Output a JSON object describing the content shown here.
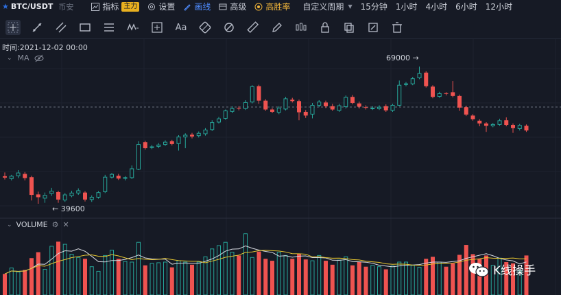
{
  "header": {
    "pair": "BTC/USDT",
    "exchange": "币安",
    "indicators_label": "指标",
    "indicators_badge": "主力",
    "settings_label": "设置",
    "draw_label": "画线",
    "advanced_label": "高级",
    "winrate_label": "高胜率",
    "custom_period_label": "自定义周期",
    "timeframes": [
      "15分钟",
      "1小时",
      "4小时",
      "6小时",
      "12小时"
    ]
  },
  "toolbar": {
    "tools": [
      "crosshair-icon",
      "trend-line-icon",
      "parallel-channel-icon",
      "rectangle-icon",
      "fib-levels-icon",
      "wave-icon",
      "measure-icon",
      "text-icon",
      "eraser-icon",
      "magnet-icon",
      "ruler-icon",
      "pencil-icon",
      "candles-icon",
      "lock-icon",
      "copy-icon",
      "edit-icon",
      "trash-icon"
    ],
    "text_tool_label": "Aa"
  },
  "chart": {
    "time_label": "时间:2021-12-02 00:00",
    "ma_label": "MA",
    "high_annotation": "69000 →",
    "low_annotation": "← 39600",
    "volume_label": "VOLUME",
    "colors": {
      "up": "#26a69a",
      "down": "#ef5350",
      "bg": "#161a25",
      "ma_white": "#d8dbe2",
      "ma_yellow": "#e8c830"
    }
  },
  "chart_data": {
    "type": "candlestick",
    "high_label": 69000,
    "low_label": 39600,
    "candles": [
      [
        45.5,
        45.2,
        46.3,
        44.8
      ],
      [
        45.0,
        45.5,
        45.8,
        44.6
      ],
      [
        45.6,
        46.2,
        46.8,
        45.1
      ],
      [
        46.0,
        45.1,
        46.4,
        44.6
      ],
      [
        45.3,
        41.5,
        45.6,
        40.3
      ],
      [
        41.6,
        41.0,
        42.2,
        39.6
      ],
      [
        40.8,
        41.4,
        42.0,
        39.8
      ],
      [
        41.8,
        42.3,
        43.0,
        41.3
      ],
      [
        42.1,
        40.5,
        42.4,
        39.8
      ],
      [
        40.4,
        41.5,
        41.9,
        40.0
      ],
      [
        41.3,
        41.9,
        42.4,
        41.0
      ],
      [
        41.9,
        42.4,
        42.9,
        41.5
      ],
      [
        42.0,
        40.5,
        42.3,
        40.1
      ],
      [
        40.5,
        41.0,
        41.4,
        40.0
      ],
      [
        41.0,
        42.0,
        42.3,
        40.7
      ],
      [
        42.2,
        45.3,
        45.8,
        41.9
      ],
      [
        45.3,
        45.9,
        46.2,
        45.0
      ],
      [
        45.6,
        45.0,
        46.0,
        44.7
      ],
      [
        45.1,
        45.2,
        45.5,
        44.6
      ],
      [
        45.2,
        47.1,
        47.8,
        44.9
      ],
      [
        47.0,
        52.3,
        53.0,
        46.8
      ],
      [
        52.8,
        51.5,
        53.1,
        51.2
      ],
      [
        51.7,
        51.8,
        52.2,
        51.3
      ],
      [
        51.9,
        52.2,
        52.6,
        51.5
      ],
      [
        52.3,
        52.8,
        53.2,
        52.0
      ],
      [
        53.0,
        52.4,
        53.3,
        52.1
      ],
      [
        52.5,
        53.9,
        54.3,
        51.0
      ],
      [
        53.9,
        54.3,
        54.7,
        51.5
      ],
      [
        54.4,
        54.0,
        54.8,
        53.6
      ],
      [
        54.2,
        54.7,
        55.1,
        53.8
      ],
      [
        54.6,
        55.4,
        55.8,
        54.2
      ],
      [
        55.5,
        57.0,
        57.5,
        55.2
      ],
      [
        57.1,
        57.8,
        58.2,
        56.8
      ],
      [
        57.9,
        59.5,
        59.8,
        57.6
      ],
      [
        59.4,
        60.0,
        60.5,
        59.0
      ],
      [
        60.1,
        60.0,
        60.5,
        59.6
      ],
      [
        60.0,
        61.3,
        61.8,
        59.7
      ],
      [
        61.4,
        64.7,
        65.0,
        61.1
      ],
      [
        64.8,
        61.7,
        65.1,
        61.0
      ],
      [
        61.7,
        59.8,
        62.0,
        59.5
      ],
      [
        59.8,
        59.3,
        60.1,
        59.0
      ],
      [
        59.2,
        60.1,
        60.5,
        58.8
      ],
      [
        59.9,
        62.1,
        62.5,
        59.6
      ],
      [
        61.9,
        61.6,
        62.3,
        61.3
      ],
      [
        61.6,
        59.2,
        61.9,
        57.5
      ],
      [
        59.3,
        58.5,
        59.7,
        58.0
      ],
      [
        58.8,
        60.7,
        61.2,
        57.9
      ],
      [
        60.7,
        61.4,
        61.8,
        60.3
      ],
      [
        61.3,
        60.5,
        61.7,
        60.1
      ],
      [
        60.5,
        59.8,
        61.0,
        59.5
      ],
      [
        59.6,
        60.6,
        61.0,
        59.3
      ],
      [
        60.4,
        62.4,
        62.8,
        60.0
      ],
      [
        62.5,
        61.2,
        62.9,
        60.9
      ],
      [
        61.1,
        60.4,
        61.5,
        60.0
      ],
      [
        60.3,
        60.2,
        60.7,
        59.8
      ],
      [
        60.1,
        60.1,
        60.5,
        59.7
      ],
      [
        60.0,
        60.3,
        60.7,
        59.7
      ],
      [
        60.5,
        59.6,
        60.9,
        59.3
      ],
      [
        59.6,
        60.7,
        61.0,
        59.3
      ],
      [
        60.7,
        65.0,
        66.0,
        60.5
      ],
      [
        65.2,
        65.3,
        65.7,
        64.8
      ],
      [
        65.3,
        66.4,
        66.8,
        65.0
      ],
      [
        66.6,
        67.5,
        69.0,
        66.3
      ],
      [
        67.7,
        64.8,
        68.0,
        64.5
      ],
      [
        64.7,
        62.5,
        65.0,
        62.2
      ],
      [
        62.6,
        63.2,
        63.6,
        62.3
      ],
      [
        63.3,
        63.2,
        63.5,
        62.8
      ],
      [
        63.5,
        62.7,
        65.9,
        62.4
      ],
      [
        62.7,
        60.2,
        63.0,
        59.5
      ],
      [
        60.3,
        58.7,
        60.6,
        58.4
      ],
      [
        58.5,
        57.7,
        58.8,
        57.4
      ],
      [
        57.4,
        56.8,
        57.7,
        56.2
      ],
      [
        56.8,
        56.3,
        57.1,
        55.0
      ],
      [
        56.3,
        56.6,
        56.9,
        56.0
      ],
      [
        56.6,
        57.4,
        57.8,
        56.3
      ],
      [
        57.5,
        56.5,
        58.1,
        56.2
      ],
      [
        56.5,
        55.8,
        56.8,
        54.8
      ],
      [
        55.7,
        56.4,
        56.7,
        55.3
      ],
      [
        56.3,
        55.3,
        56.6,
        55.0
      ]
    ],
    "volume": [
      3.2,
      4.1,
      3.5,
      3.8,
      5.6,
      6.5,
      3.9,
      7.4,
      8.1,
      7.7,
      6.2,
      5.7,
      5.5,
      4.3,
      3.6,
      6.0,
      6.8,
      5.5,
      5.1,
      5.0,
      8.0,
      4.5,
      4.8,
      4.9,
      5.0,
      4.2,
      5.2,
      5.0,
      4.6,
      5.0,
      5.8,
      7.0,
      7.5,
      8.0,
      6.5,
      6.0,
      9.3,
      5.7,
      6.6,
      5.5,
      5.2,
      6.5,
      6.0,
      5.5,
      6.3,
      5.4,
      5.2,
      6.0,
      5.2,
      4.6,
      5.3,
      5.8,
      4.5,
      5.0,
      4.3,
      4.5,
      4.3,
      3.9,
      4.4,
      5.0,
      5.0,
      4.5,
      4.2,
      5.5,
      5.8,
      5.0,
      4.3,
      4.8,
      6.1,
      7.6,
      6.2,
      5.5,
      6.0,
      4.5,
      5.6,
      5.0,
      4.8,
      3.7,
      6.0
    ]
  }
}
